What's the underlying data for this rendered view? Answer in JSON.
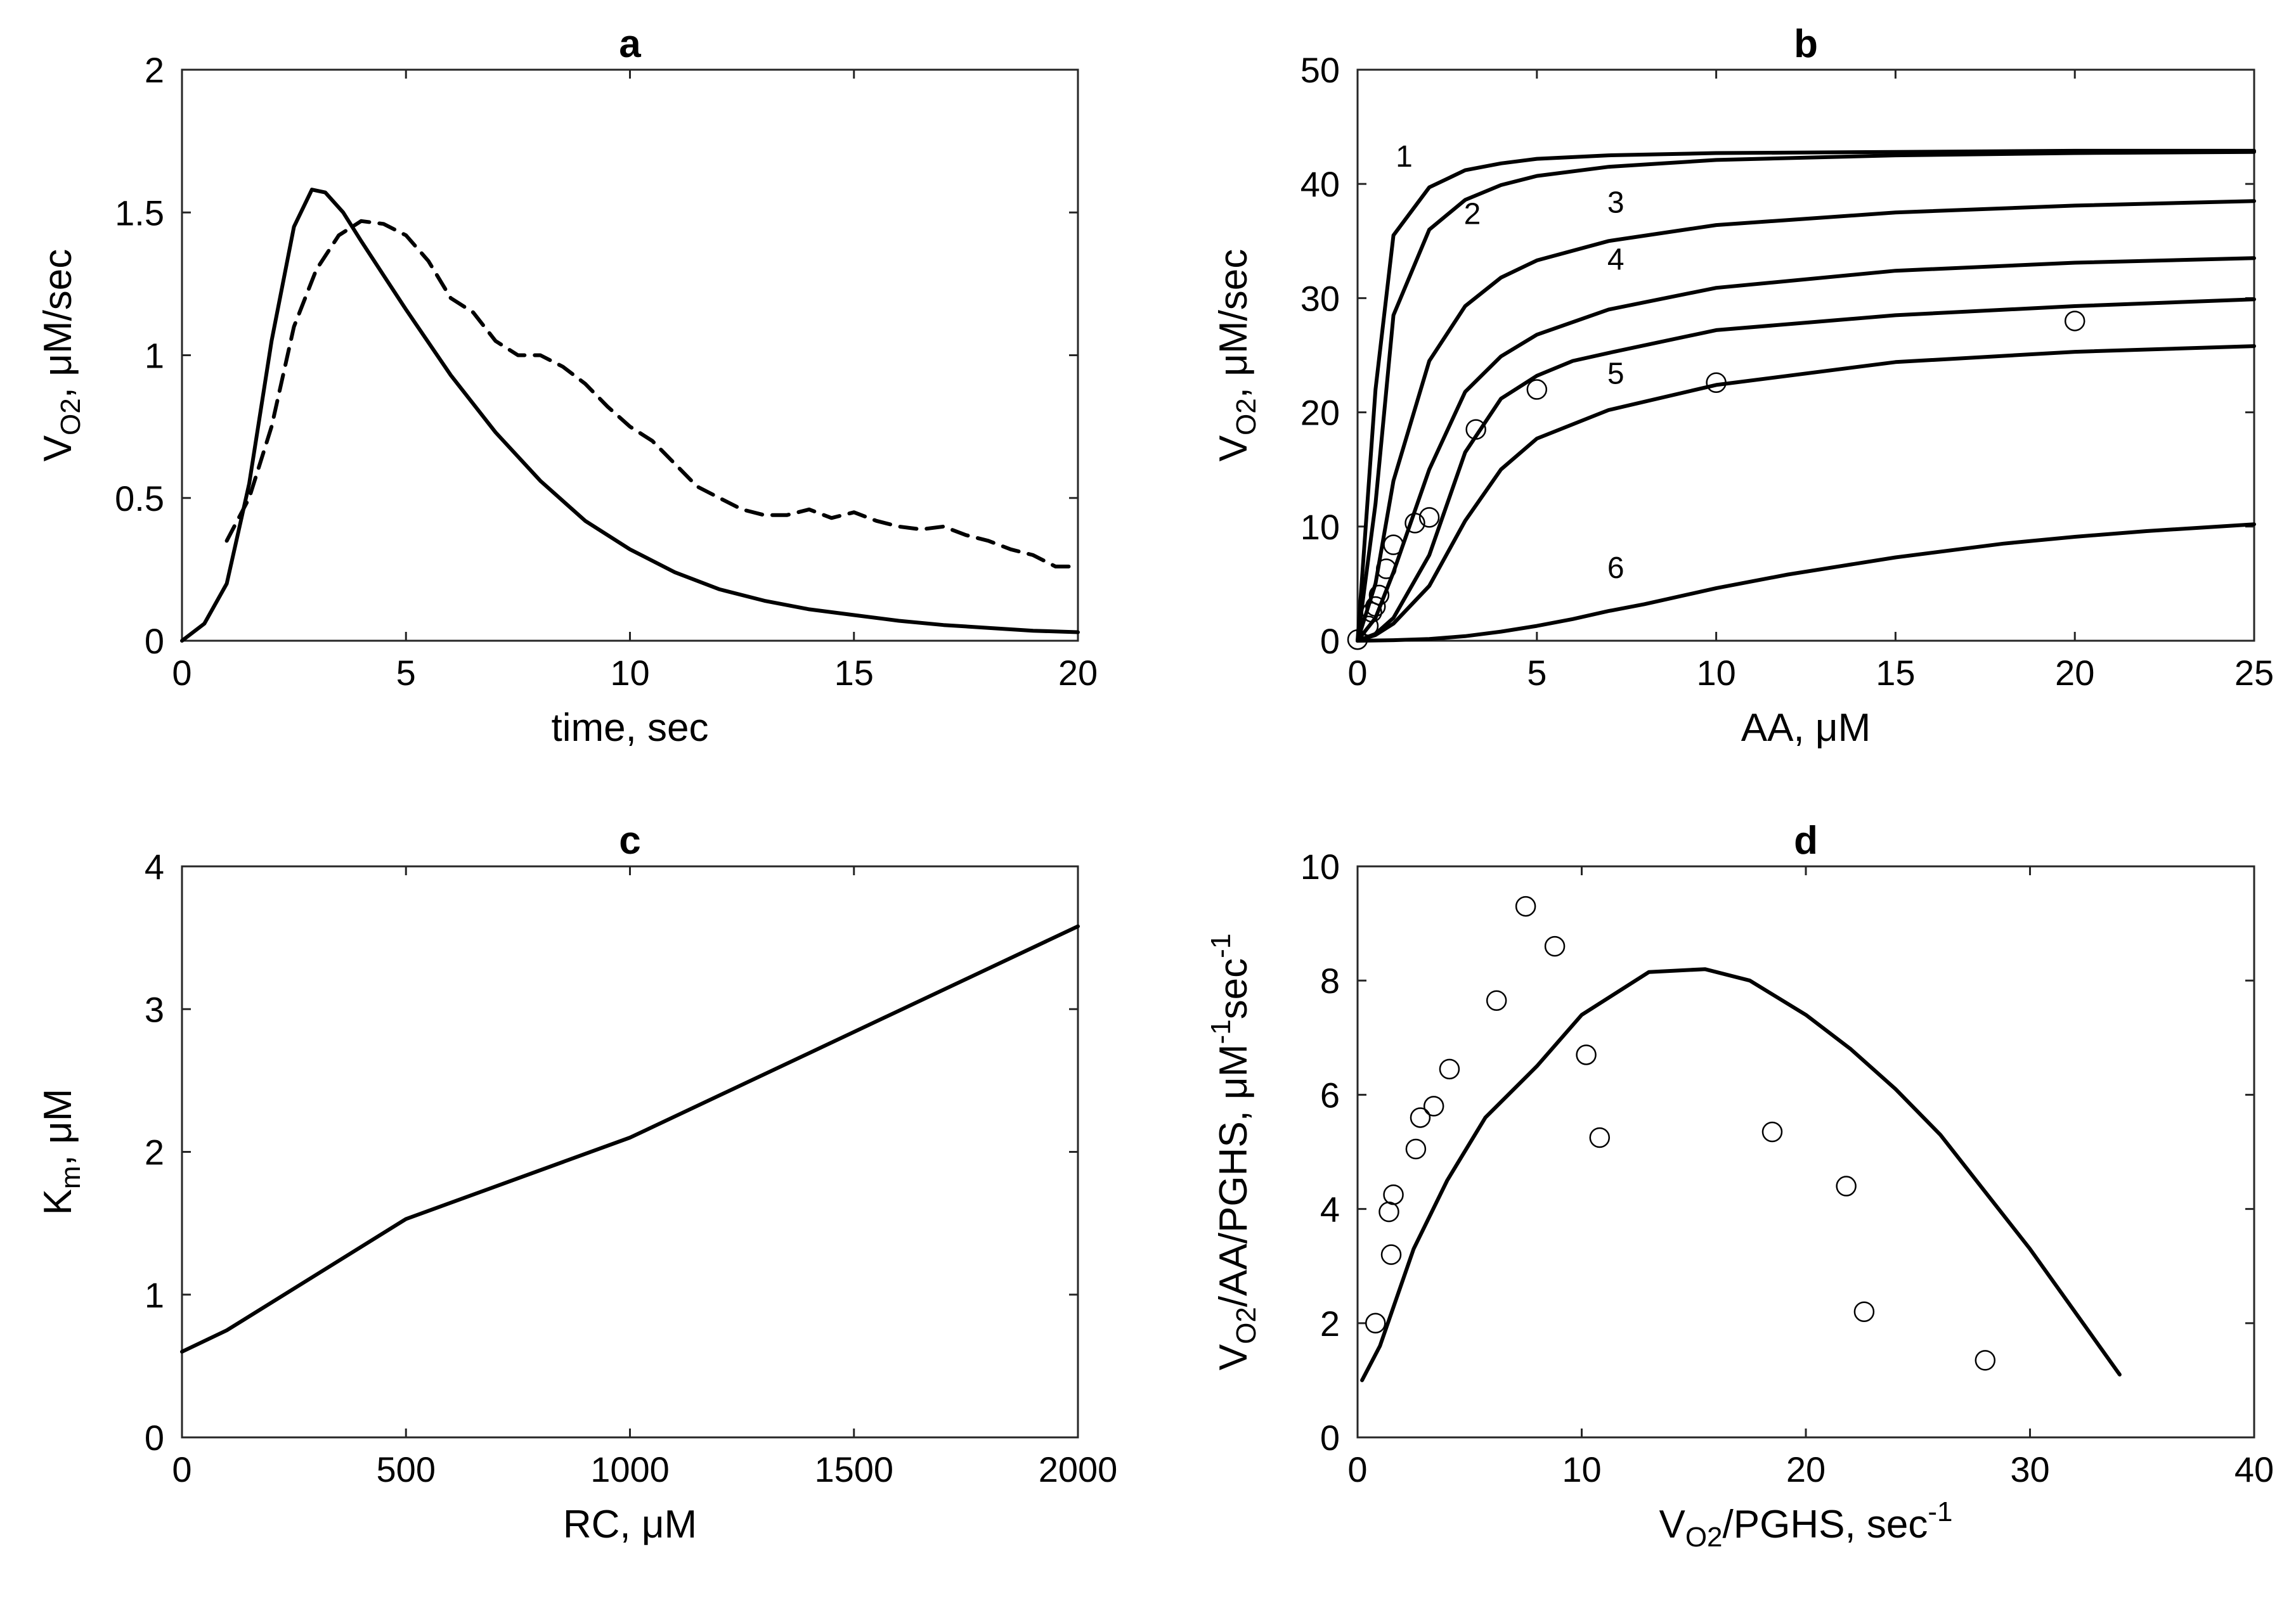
{
  "chart_data": [
    {
      "id": "a",
      "type": "line",
      "title": "a",
      "xlabel": "time, sec",
      "ylabel": {
        "base": "V",
        "sub": "O2",
        "rest": ", μM/sec"
      },
      "xlim": [
        0,
        20
      ],
      "ylim": [
        0,
        2
      ],
      "xticks": [
        0,
        5,
        10,
        15,
        20
      ],
      "yticks": [
        0,
        0.5,
        1,
        1.5,
        2
      ],
      "xtick_labels": [
        "0",
        "5",
        "10",
        "15",
        "20"
      ],
      "ytick_labels": [
        "0",
        "0.5",
        "1",
        "1.5",
        "2"
      ],
      "grid": false,
      "series": [
        {
          "style": "solid",
          "x": [
            0,
            0.5,
            1,
            1.5,
            2,
            2.5,
            2.9,
            3.2,
            3.6,
            4,
            4.5,
            5,
            6,
            7,
            8,
            9,
            10,
            11,
            12,
            13,
            14,
            15,
            16,
            17,
            18,
            19,
            20
          ],
          "y": [
            0,
            0.06,
            0.2,
            0.55,
            1.05,
            1.45,
            1.58,
            1.57,
            1.5,
            1.4,
            1.28,
            1.16,
            0.93,
            0.73,
            0.56,
            0.42,
            0.32,
            0.24,
            0.18,
            0.14,
            0.11,
            0.09,
            0.07,
            0.055,
            0.045,
            0.035,
            0.03
          ]
        },
        {
          "style": "dashed",
          "x": [
            1,
            1.5,
            2,
            2.5,
            3,
            3.5,
            4,
            4.5,
            5,
            5.5,
            6,
            6.5,
            7,
            7.5,
            8,
            8.5,
            9,
            9.5,
            10,
            10.5,
            11,
            11.5,
            12,
            12.5,
            13,
            13.5,
            14,
            14.5,
            15,
            15.5,
            16,
            16.5,
            17,
            17.5,
            18,
            18.5,
            19,
            19.5,
            20
          ],
          "y": [
            0.35,
            0.5,
            0.75,
            1.1,
            1.3,
            1.42,
            1.47,
            1.46,
            1.42,
            1.33,
            1.2,
            1.15,
            1.05,
            1.0,
            1.0,
            0.96,
            0.9,
            0.82,
            0.75,
            0.7,
            0.62,
            0.54,
            0.5,
            0.46,
            0.44,
            0.44,
            0.46,
            0.43,
            0.45,
            0.42,
            0.4,
            0.39,
            0.4,
            0.37,
            0.35,
            0.32,
            0.3,
            0.26,
            0.26
          ]
        }
      ]
    },
    {
      "id": "b",
      "type": "line",
      "title": "b",
      "xlabel": "AA, μM",
      "ylabel": {
        "base": "V",
        "sub": "O2",
        "rest": ", μM/sec"
      },
      "xlim": [
        0,
        25
      ],
      "ylim": [
        0,
        50
      ],
      "xticks": [
        0,
        5,
        10,
        15,
        20,
        25
      ],
      "yticks": [
        0,
        10,
        20,
        30,
        40,
        50
      ],
      "xtick_labels": [
        "0",
        "5",
        "10",
        "15",
        "20",
        "25"
      ],
      "ytick_labels": [
        "0",
        "10",
        "20",
        "30",
        "40",
        "50"
      ],
      "grid": false,
      "series": [
        {
          "name": "1",
          "x": [
            0,
            0.5,
            1,
            2,
            3,
            4,
            5,
            7,
            10,
            15,
            20,
            25
          ],
          "y": [
            0,
            22,
            35.5,
            39.7,
            41.2,
            41.8,
            42.2,
            42.5,
            42.7,
            42.8,
            42.9,
            42.9
          ]
        },
        {
          "name": "2",
          "x": [
            0,
            0.5,
            1,
            2,
            3,
            4,
            5,
            7,
            10,
            15,
            20,
            25
          ],
          "y": [
            0,
            12,
            28.5,
            36,
            38.6,
            39.9,
            40.7,
            41.5,
            42.1,
            42.5,
            42.7,
            42.8
          ]
        },
        {
          "name": "3",
          "x": [
            0,
            0.5,
            1,
            2,
            3,
            4,
            5,
            7,
            10,
            15,
            20,
            25
          ],
          "y": [
            0,
            5,
            14,
            24.5,
            29.3,
            31.8,
            33.3,
            35,
            36.4,
            37.5,
            38.1,
            38.5
          ]
        },
        {
          "name": "4",
          "x": [
            0,
            0.5,
            1,
            2,
            3,
            4,
            5,
            7,
            10,
            15,
            20,
            25
          ],
          "y": [
            0,
            2,
            6,
            15,
            21.8,
            24.9,
            26.8,
            29,
            30.9,
            32.4,
            33.1,
            33.5
          ]
        },
        {
          "name": "5",
          "x": [
            0,
            0.5,
            1,
            2,
            3,
            4,
            5,
            6,
            7,
            10,
            15,
            20,
            25
          ],
          "y": [
            0,
            0.6,
            2,
            7.5,
            16.5,
            21.2,
            23.2,
            24.5,
            25.2,
            27.2,
            28.5,
            29.3,
            29.9
          ]
        },
        {
          "name": "6",
          "x": [
            0,
            0.5,
            1,
            2,
            3,
            4,
            5,
            7,
            10,
            15,
            20,
            25
          ],
          "y": [
            0,
            0.5,
            1.5,
            4.8,
            10.5,
            15,
            17.7,
            20.2,
            22.4,
            24.4,
            25.3,
            25.8
          ]
        },
        {
          "name": "",
          "x": [
            0,
            1,
            2,
            3,
            4,
            5,
            6,
            7,
            8,
            10,
            12,
            15,
            18,
            20,
            22,
            25
          ],
          "y": [
            0,
            0.05,
            0.15,
            0.4,
            0.8,
            1.3,
            1.9,
            2.6,
            3.2,
            4.6,
            5.8,
            7.3,
            8.5,
            9.1,
            9.6,
            10.2
          ]
        }
      ],
      "curve_labels": [
        {
          "text": "1",
          "x": 1.3,
          "y": 41.5
        },
        {
          "text": "2",
          "x": 3.2,
          "y": 36.5
        },
        {
          "text": "3",
          "x": 7.2,
          "y": 37.5
        },
        {
          "text": "4",
          "x": 7.2,
          "y": 32.5
        },
        {
          "text": "5",
          "x": 7.2,
          "y": 22.5
        },
        {
          "text": "6",
          "x": 7.2,
          "y": 5.5
        }
      ],
      "points": {
        "x": [
          0,
          0.3,
          0.4,
          0.5,
          0.6,
          0.8,
          1.0,
          1.6,
          2.0,
          3.3,
          5,
          10,
          20
        ],
        "y": [
          0.1,
          1.3,
          2.5,
          3.0,
          4.0,
          6.3,
          8.4,
          10.3,
          10.8,
          18.5,
          22,
          22.6,
          28
        ]
      }
    },
    {
      "id": "c",
      "type": "line",
      "title": "c",
      "xlabel": "RC, μM",
      "ylabel": {
        "base": "K",
        "sub": "m",
        "rest": ", μM"
      },
      "xlim": [
        0,
        2000
      ],
      "ylim": [
        0,
        4
      ],
      "xticks": [
        0,
        500,
        1000,
        1500,
        2000
      ],
      "yticks": [
        0,
        1,
        2,
        3,
        4
      ],
      "xtick_labels": [
        "0",
        "500",
        "1000",
        "1500",
        "2000"
      ],
      "ytick_labels": [
        "0",
        "1",
        "2",
        "3",
        "4"
      ],
      "grid": false,
      "series": [
        {
          "style": "solid",
          "x": [
            0,
            100,
            500,
            1000,
            2000
          ],
          "y": [
            0.6,
            0.75,
            1.53,
            2.1,
            3.58
          ]
        }
      ]
    },
    {
      "id": "d",
      "type": "scatter",
      "title": "d",
      "xlabel": {
        "base": "V",
        "sub": "O2",
        "rest": "/PGHS, sec",
        "sup": "-1"
      },
      "ylabel": {
        "base": "V",
        "sub": "O2",
        "rest": "/AA/PGHS, μM",
        "sup1": "-1",
        "rest2": "sec",
        "sup2": "-1"
      },
      "xlim": [
        0,
        40
      ],
      "ylim": [
        0,
        10
      ],
      "xticks": [
        0,
        10,
        20,
        30,
        40
      ],
      "yticks": [
        0,
        2,
        4,
        6,
        8,
        10
      ],
      "xtick_labels": [
        "0",
        "10",
        "20",
        "30",
        "40"
      ],
      "ytick_labels": [
        "0",
        "2",
        "4",
        "6",
        "8",
        "10"
      ],
      "grid": false,
      "series": [
        {
          "style": "solid",
          "x": [
            0.2,
            1,
            2.5,
            4,
            5.7,
            8,
            10,
            13,
            15.5,
            17.5,
            20,
            22,
            24,
            26,
            28,
            30,
            32,
            34
          ],
          "y": [
            1,
            1.6,
            3.3,
            4.5,
            5.6,
            6.5,
            7.4,
            8.15,
            8.2,
            8.0,
            7.4,
            6.8,
            6.1,
            5.3,
            4.3,
            3.3,
            2.2,
            1.1
          ]
        }
      ],
      "points": {
        "x": [
          0.8,
          1.4,
          1.5,
          1.6,
          2.6,
          2.8,
          3.4,
          4.1,
          6.2,
          7.5,
          8.8,
          10.2,
          10.8,
          18.5,
          21.8,
          22.6,
          28.0
        ],
        "y": [
          2.0,
          3.95,
          3.2,
          4.25,
          5.05,
          5.6,
          5.8,
          6.45,
          7.65,
          9.3,
          8.6,
          6.7,
          5.25,
          5.35,
          4.4,
          2.2,
          1.35
        ]
      }
    }
  ]
}
